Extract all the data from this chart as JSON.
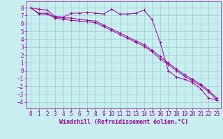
{
  "xlabel": "Windchill (Refroidissement éolien,°C)",
  "background_color": "#c8eef0",
  "line_color": "#990099",
  "grid_color": "#99cccc",
  "x_ticks": [
    0,
    1,
    2,
    3,
    4,
    5,
    6,
    7,
    8,
    9,
    10,
    11,
    12,
    13,
    14,
    15,
    16,
    17,
    18,
    19,
    20,
    21,
    22,
    23
  ],
  "y_ticks": [
    -4,
    -3,
    -2,
    -1,
    0,
    1,
    2,
    3,
    4,
    5,
    6,
    7,
    8
  ],
  "xlim": [
    -0.5,
    23.5
  ],
  "ylim": [
    -4.8,
    8.8
  ],
  "line1_x": [
    0,
    1,
    2,
    3,
    4,
    5,
    6,
    7,
    8,
    9,
    10,
    11,
    12,
    13,
    14,
    15,
    16,
    17,
    18,
    19,
    20,
    21,
    22,
    23
  ],
  "line1_y": [
    8.0,
    7.8,
    7.7,
    6.9,
    6.8,
    7.3,
    7.3,
    7.4,
    7.3,
    7.2,
    7.8,
    7.2,
    7.2,
    7.3,
    7.7,
    6.5,
    3.6,
    0.0,
    -0.8,
    -1.1,
    -1.5,
    -2.3,
    -3.5,
    -3.7
  ],
  "line2_x": [
    0,
    1,
    2,
    3,
    4,
    5,
    6,
    7,
    8,
    9,
    10,
    11,
    12,
    13,
    14,
    15,
    16,
    17,
    18,
    19,
    20,
    21,
    22,
    23
  ],
  "line2_y": [
    8.0,
    7.3,
    7.3,
    6.8,
    6.7,
    6.7,
    6.5,
    6.4,
    6.3,
    5.8,
    5.3,
    4.8,
    4.3,
    3.8,
    3.3,
    2.6,
    1.8,
    1.0,
    0.2,
    -0.5,
    -1.1,
    -1.7,
    -2.5,
    -3.5
  ],
  "line3_x": [
    0,
    1,
    2,
    3,
    4,
    5,
    6,
    7,
    8,
    9,
    10,
    11,
    12,
    13,
    14,
    15,
    16,
    17,
    18,
    19,
    20,
    21,
    22,
    23
  ],
  "line3_y": [
    8.0,
    7.2,
    7.2,
    6.7,
    6.5,
    6.4,
    6.3,
    6.2,
    6.1,
    5.6,
    5.1,
    4.6,
    4.1,
    3.6,
    3.1,
    2.4,
    1.5,
    0.8,
    0.0,
    -0.7,
    -1.3,
    -1.9,
    -2.7,
    -3.7
  ],
  "tick_fontsize": 5.5,
  "label_fontsize": 6.0
}
